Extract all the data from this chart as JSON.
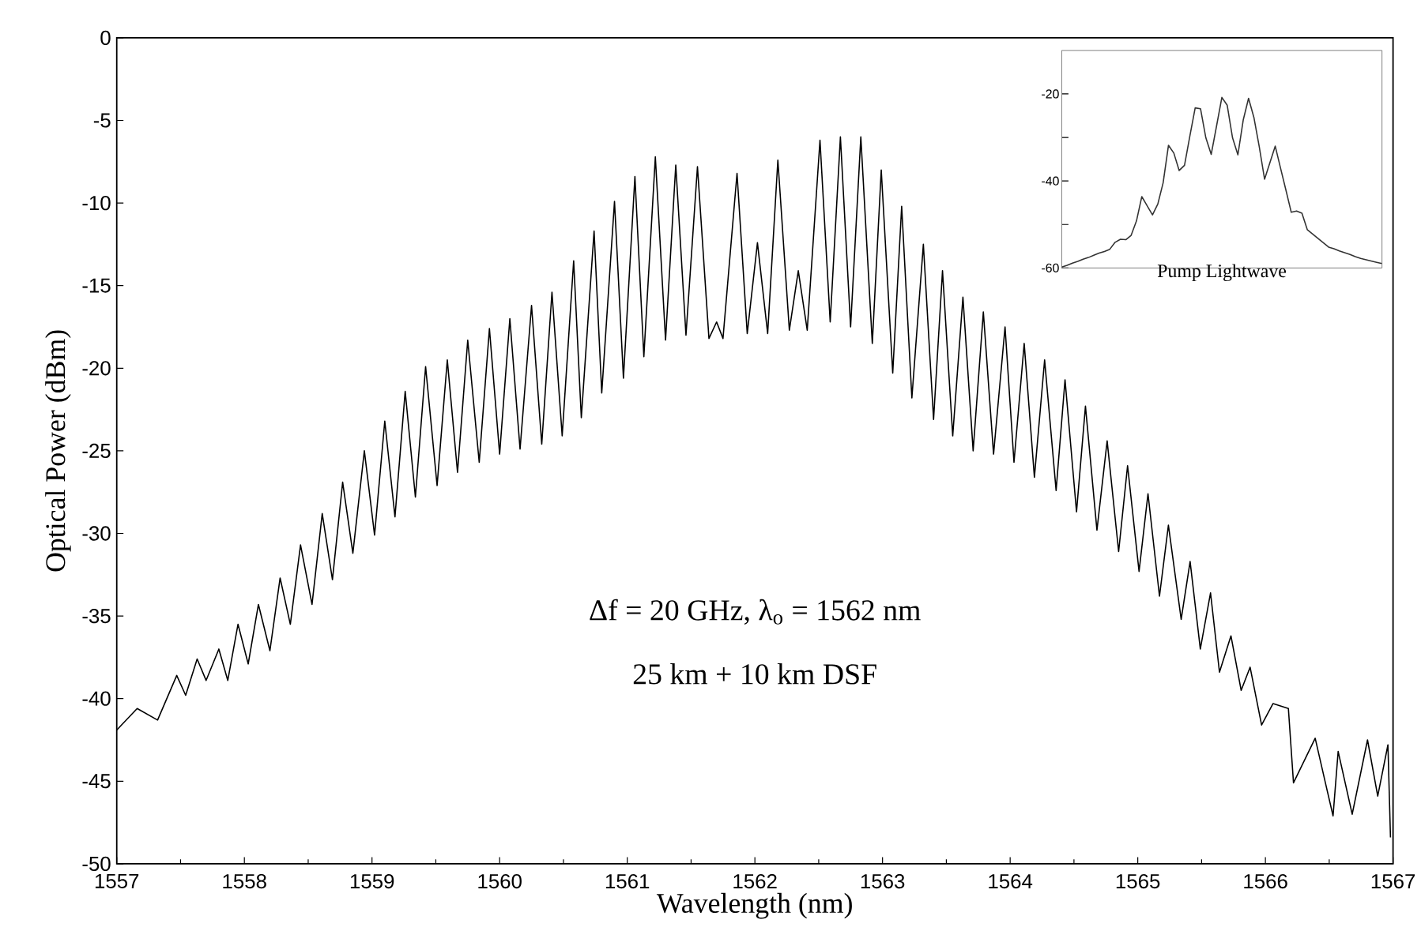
{
  "chart_data": [
    {
      "type": "line",
      "xlabel": "Wavelength (nm)",
      "ylabel": "Optical Power (dBm)",
      "color": "#000000",
      "annotations": [
        "Δf = 20 GHz,  λ$_{o}$ = 1562 nm",
        "25 km + 10 km DSF"
      ],
      "xlim": [
        1557,
        1567
      ],
      "ylim": [
        -50,
        0
      ],
      "xticks": [
        1557,
        1558,
        1559,
        1560,
        1561,
        1562,
        1563,
        1564,
        1565,
        1566,
        1567
      ],
      "yticks": [
        0,
        -5,
        -10,
        -15,
        -20,
        -25,
        -30,
        -35,
        -40,
        -45,
        -50
      ],
      "x": [
        1557.0,
        1557.16,
        1557.32,
        1557.47,
        1557.54,
        1557.63,
        1557.7,
        1557.8,
        1557.87,
        1557.95,
        1558.03,
        1558.11,
        1558.2,
        1558.28,
        1558.36,
        1558.44,
        1558.53,
        1558.61,
        1558.69,
        1558.77,
        1558.85,
        1558.94,
        1559.02,
        1559.1,
        1559.18,
        1559.26,
        1559.34,
        1559.42,
        1559.51,
        1559.59,
        1559.67,
        1559.75,
        1559.84,
        1559.92,
        1560.0,
        1560.08,
        1560.16,
        1560.25,
        1560.33,
        1560.41,
        1560.49,
        1560.58,
        1560.64,
        1560.74,
        1560.8,
        1560.9,
        1560.97,
        1561.06,
        1561.13,
        1561.22,
        1561.3,
        1561.38,
        1561.46,
        1561.55,
        1561.64,
        1561.7,
        1561.75,
        1561.86,
        1561.94,
        1562.02,
        1562.1,
        1562.18,
        1562.27,
        1562.34,
        1562.41,
        1562.51,
        1562.59,
        1562.67,
        1562.75,
        1562.83,
        1562.92,
        1562.99,
        1563.08,
        1563.15,
        1563.23,
        1563.32,
        1563.4,
        1563.47,
        1563.55,
        1563.63,
        1563.71,
        1563.79,
        1563.87,
        1563.96,
        1564.03,
        1564.11,
        1564.19,
        1564.27,
        1564.36,
        1564.43,
        1564.52,
        1564.59,
        1564.68,
        1564.76,
        1564.85,
        1564.92,
        1565.01,
        1565.08,
        1565.17,
        1565.24,
        1565.34,
        1565.41,
        1565.49,
        1565.57,
        1565.64,
        1565.73,
        1565.81,
        1565.88,
        1565.97,
        1566.06,
        1566.18,
        1566.22,
        1566.39,
        1566.47,
        1566.53,
        1566.57,
        1566.68,
        1566.8,
        1566.88,
        1566.96,
        1566.98
      ],
      "values": [
        -41.9,
        -40.6,
        -41.3,
        -38.6,
        -39.8,
        -37.6,
        -38.9,
        -37.0,
        -38.9,
        -35.5,
        -37.9,
        -34.3,
        -37.1,
        -32.7,
        -35.5,
        -30.7,
        -34.3,
        -28.8,
        -32.8,
        -26.9,
        -31.2,
        -25.0,
        -30.1,
        -23.2,
        -29.0,
        -21.4,
        -27.8,
        -19.9,
        -27.1,
        -19.5,
        -26.3,
        -18.3,
        -25.7,
        -17.6,
        -25.2,
        -17.0,
        -24.9,
        -16.2,
        -24.6,
        -15.4,
        -24.1,
        -13.5,
        -23.0,
        -11.7,
        -21.5,
        -9.9,
        -20.6,
        -8.4,
        -19.3,
        -7.2,
        -18.3,
        -7.7,
        -18.0,
        -7.8,
        -18.2,
        -17.2,
        -18.2,
        -8.2,
        -17.9,
        -12.4,
        -17.9,
        -7.4,
        -17.7,
        -14.1,
        -17.7,
        -6.2,
        -17.2,
        -6.0,
        -17.5,
        -6.0,
        -18.5,
        -8.0,
        -20.3,
        -10.2,
        -21.8,
        -12.5,
        -23.1,
        -14.1,
        -24.1,
        -15.7,
        -25.0,
        -16.6,
        -25.2,
        -17.5,
        -25.7,
        -18.5,
        -26.6,
        -19.5,
        -27.4,
        -20.7,
        -28.7,
        -22.3,
        -29.8,
        -24.4,
        -31.1,
        -25.9,
        -32.3,
        -27.6,
        -33.8,
        -29.5,
        -35.2,
        -31.7,
        -37.0,
        -33.6,
        -38.4,
        -36.2,
        -39.5,
        -38.1,
        -41.6,
        -40.3,
        -40.6,
        -45.1,
        -42.4,
        -45.1,
        -47.1,
        -43.2,
        -47.0,
        -42.5,
        -45.9,
        -42.8,
        -48.4
      ]
    },
    {
      "type": "line",
      "xlabel": "Pump Lightwave",
      "color": "#333333",
      "tick_labels": "y",
      "ylim": [
        -60,
        -10
      ],
      "yticks": [
        {
          "value": -20,
          "label": "-20"
        },
        {
          "value": -30,
          "label": null
        },
        {
          "value": -40,
          "label": "-40"
        },
        {
          "value": -50,
          "label": null
        },
        {
          "value": -60,
          "label": "-60"
        }
      ],
      "categories": [
        null,
        null,
        null,
        null,
        null,
        null,
        null,
        null,
        null,
        null,
        null,
        null,
        null,
        null,
        null,
        null,
        null,
        null,
        null,
        null,
        null,
        null,
        null,
        null,
        null,
        null,
        null,
        null,
        null,
        null,
        null,
        null,
        null,
        null,
        null,
        null,
        null,
        null,
        null,
        null,
        null,
        null,
        null,
        null,
        null,
        null,
        null,
        null,
        null,
        null,
        null,
        null,
        null,
        null,
        null,
        null,
        null,
        null,
        null,
        null,
        null
      ],
      "values": [
        -59.8,
        -59.4,
        -58.9,
        -58.5,
        -58.0,
        -57.6,
        -57.1,
        -56.6,
        -56.2,
        -55.7,
        -54.1,
        -53.4,
        -53.5,
        -52.5,
        -49.2,
        -43.6,
        -45.7,
        -47.8,
        -45.3,
        -40.4,
        -31.8,
        -33.6,
        -37.6,
        -36.4,
        -29.7,
        -23.2,
        -23.4,
        -30.1,
        -33.9,
        -27.4,
        -20.8,
        -22.6,
        -30.1,
        -34.0,
        -26.0,
        -21.0,
        -25.4,
        -32.1,
        -39.6,
        -35.8,
        -32.0,
        -37.1,
        -42.1,
        -47.2,
        -46.9,
        -47.4,
        -51.2,
        -52.2,
        -53.2,
        -54.2,
        -55.2,
        -55.6,
        -56.1,
        -56.5,
        -56.9,
        -57.4,
        -57.8,
        -58.1,
        -58.4,
        -58.7,
        -59.0
      ]
    }
  ]
}
